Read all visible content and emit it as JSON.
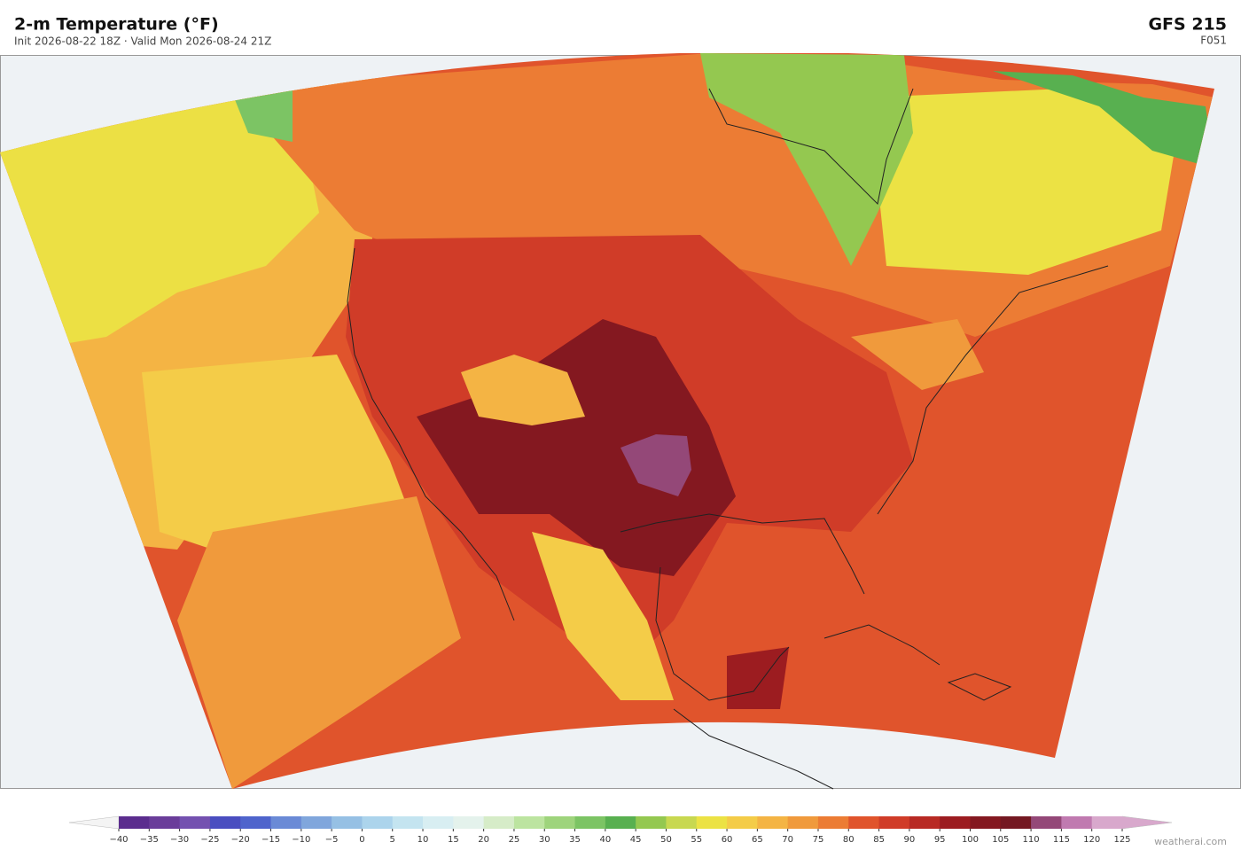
{
  "header": {
    "title": "2-m Temperature  (°F)",
    "subtitle": "Init 2026-08-22 18Z  ·  Valid Mon 2026-08-24 21Z",
    "model": "GFS  215",
    "forecast_hour": "F051"
  },
  "colorbar": {
    "ticks": [
      {
        "value": -40,
        "label": "−40"
      },
      {
        "value": -35,
        "label": "−35"
      },
      {
        "value": -30,
        "label": "−30"
      },
      {
        "value": -25,
        "label": "−25"
      },
      {
        "value": -20,
        "label": "−20"
      },
      {
        "value": -15,
        "label": "−15"
      },
      {
        "value": -10,
        "label": "−10"
      },
      {
        "value": -5,
        "label": "−5"
      },
      0,
      5,
      10,
      15,
      20,
      25,
      30,
      35,
      40,
      45,
      50,
      55,
      60,
      65,
      70,
      75,
      80,
      85,
      90,
      95,
      100,
      105,
      110,
      115,
      120,
      125
    ],
    "colors": [
      "#5b2d8e",
      "#6a3d9a",
      "#7451b0",
      "#4a4ec0",
      "#4f64cc",
      "#6a8ad6",
      "#80a6dc",
      "#96c0e4",
      "#acd4ec",
      "#c4e4f0",
      "#d8eef2",
      "#e4f2ec",
      "#d6ecc8",
      "#bce4a0",
      "#9ed47c",
      "#7cc464",
      "#58b050",
      "#94c850",
      "#c8d850",
      "#ece244",
      "#f4cc48",
      "#f4b444",
      "#f09a3c",
      "#ec7c34",
      "#e0542c",
      "#d03c28",
      "#b82a24",
      "#9c1c20",
      "#841820",
      "#741822",
      "#944878",
      "#c07ab0",
      "#d8a8cc"
    ]
  },
  "watermark": "weatherai.com"
}
